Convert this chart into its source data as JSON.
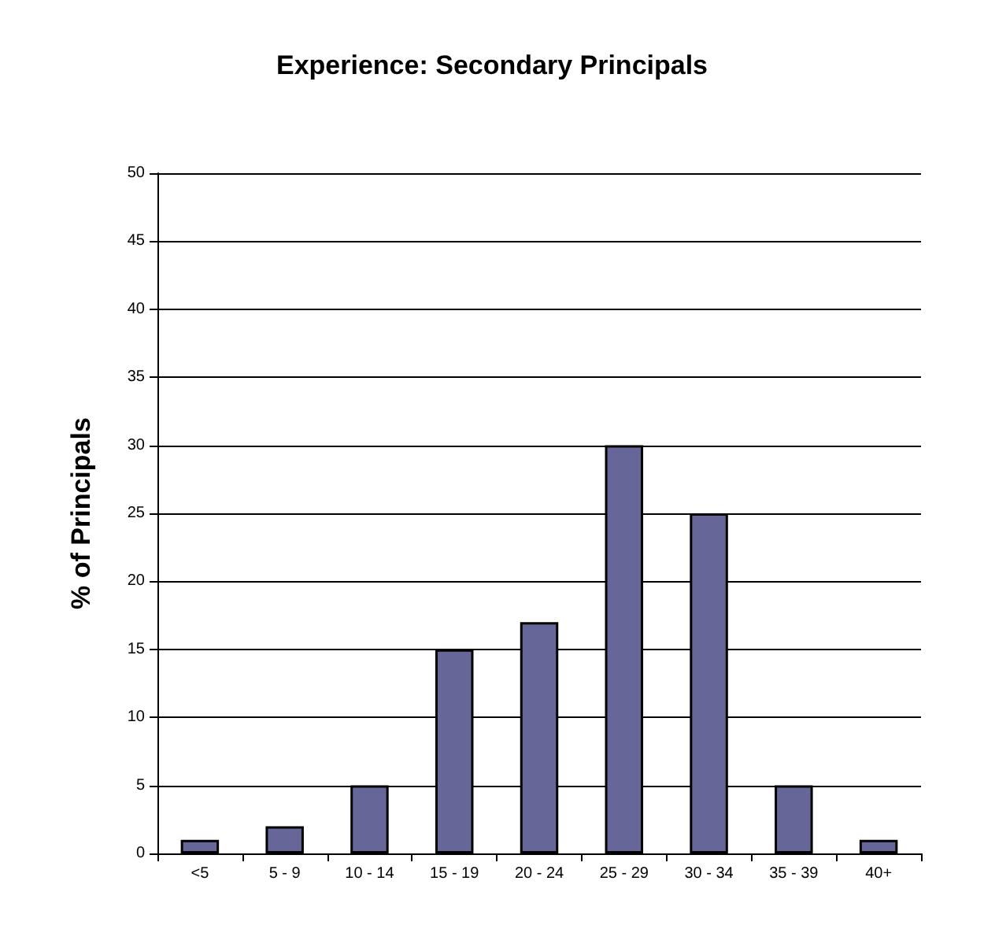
{
  "chart_data": {
    "type": "bar",
    "title": "Experience: Secondary Principals",
    "ylabel": "% of Principals",
    "categories": [
      "<5",
      "5 - 9",
      "10 - 14",
      "15 - 19",
      "20 - 24",
      "25 - 29",
      "30 - 34",
      "35 - 39",
      "40+"
    ],
    "values": [
      1,
      2,
      5,
      15,
      17,
      30,
      25,
      5,
      1
    ],
    "color": "#666699",
    "ylim": [
      0,
      50
    ],
    "yticks": [
      0,
      5,
      10,
      15,
      20,
      25,
      30,
      35,
      40,
      45,
      50
    ],
    "grid": "y"
  }
}
